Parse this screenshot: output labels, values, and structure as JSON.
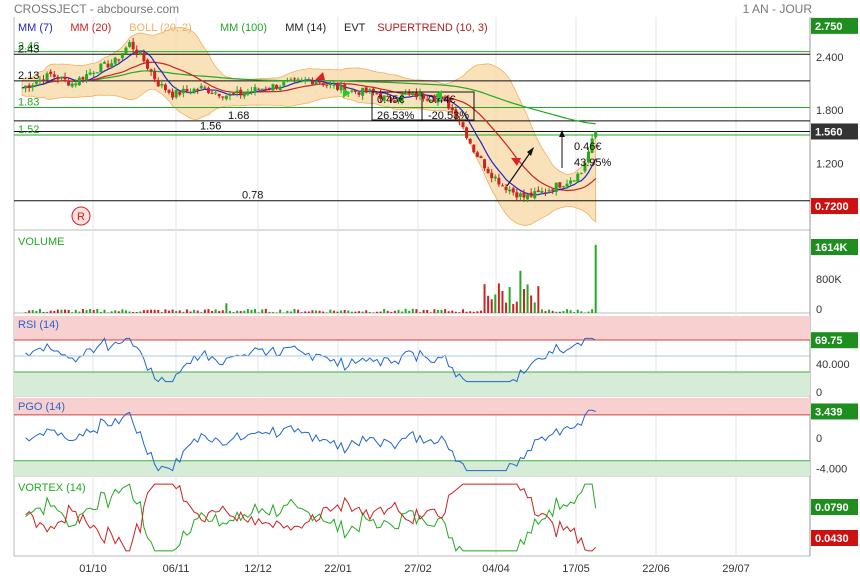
{
  "header": {
    "title": "CROSSJECT - abcbourse.com",
    "period": "1 AN - JOUR"
  },
  "legend": [
    {
      "label": "MM (7)",
      "color": "#2222cc"
    },
    {
      "label": "MM (20)",
      "color": "#cc2222"
    },
    {
      "label": "BOLL (20, 2)",
      "color": "#f0b060"
    },
    {
      "label": "MM (100)",
      "color": "#22aa22"
    },
    {
      "label": "MM (14)",
      "color": "#222222"
    },
    {
      "label": "EVT",
      "color": "#222222"
    },
    {
      "label": "SUPERTREND (10, 3)",
      "color": "#aa2222"
    }
  ],
  "colors": {
    "up": "#22aa22",
    "down": "#cc2222",
    "boll_fill": "#f7d9a8",
    "rsi_line": "#2266cc",
    "vortex_plus": "#22aa22",
    "vortex_minus": "#cc2222",
    "overbought": "#f8d0d0",
    "oversold": "#d7ecd7",
    "badge_green": "#1e8e1e",
    "badge_red": "#cc1111",
    "badge_black": "#333333"
  },
  "chart_data": [
    {
      "type": "candlestick",
      "panel": "price",
      "x_ticks": [
        "01/10",
        "06/11",
        "12/12",
        "22/01",
        "27/02",
        "04/04",
        "17/05",
        "22/06",
        "29/07"
      ],
      "y_ticks": [
        2.4,
        1.8,
        1.2
      ],
      "ylim": [
        0.45,
        2.85
      ],
      "last_price": 1.56,
      "badges": [
        {
          "value": "2.750",
          "y": 2.75,
          "color": "green"
        },
        {
          "value": "1.560",
          "y": 1.56,
          "color": "black"
        },
        {
          "value": "0.7200",
          "y": 0.72,
          "color": "red"
        }
      ],
      "horizontal_levels": [
        {
          "value": 2.46,
          "label": "2.46",
          "color": "green"
        },
        {
          "value": 2.43,
          "label": "2.43",
          "color": "black"
        },
        {
          "value": 2.13,
          "label": "2.13",
          "color": "black"
        },
        {
          "value": 1.83,
          "label": "1.83",
          "color": "green"
        },
        {
          "value": 1.68,
          "label": "1.68",
          "color": "black"
        },
        {
          "value": 1.56,
          "label": "1.56",
          "color": "black"
        },
        {
          "value": 1.52,
          "label": "1.52",
          "color": "green"
        },
        {
          "value": 0.78,
          "label": "0.78",
          "color": "black"
        }
      ],
      "annotations": [
        {
          "text": "0.45€",
          "x": "07/02",
          "y": 1.99
        },
        {
          "text": "26.53%",
          "x": "07/02",
          "y": 1.76
        },
        {
          "text": "0.44€",
          "x": "04/03",
          "y": 1.99
        },
        {
          "text": "-20.53%",
          "x": "04/03",
          "y": 1.76
        },
        {
          "text": "0.46€",
          "x": "15/05",
          "y": 1.27
        },
        {
          "text": "43.95%",
          "x": "15/05",
          "y": 1.1
        }
      ],
      "marker": "R"
    },
    {
      "type": "bar",
      "panel": "volume",
      "title": "VOLUME",
      "y_ticks": [
        "800K",
        "0"
      ],
      "last_value_label": "1614K",
      "last_value": 1614000,
      "peaks": [
        {
          "date": "03/04",
          "value": 700000
        },
        {
          "date": "10/04",
          "value": 1000000
        },
        {
          "date": "14/05",
          "value": 1614000
        }
      ]
    },
    {
      "type": "line",
      "panel": "rsi",
      "title": "RSI (14)",
      "y_ticks": [
        40,
        0
      ],
      "ylim": [
        0,
        100
      ],
      "last_value": 69.75,
      "overbought": 70,
      "oversold": 30,
      "center": 50
    },
    {
      "type": "line",
      "panel": "pgo",
      "title": "PGO (14)",
      "y_ticks": [
        "0",
        "-4.000"
      ],
      "ylim": [
        -5,
        5.2
      ],
      "last_value": 3.439,
      "overbought": 3,
      "oversold": -3
    },
    {
      "type": "line",
      "panel": "vortex",
      "title": "VORTEX (14)",
      "last_plus": 0.079,
      "last_minus": 0.043,
      "badges": [
        "0.0790",
        "0.0430"
      ]
    }
  ]
}
